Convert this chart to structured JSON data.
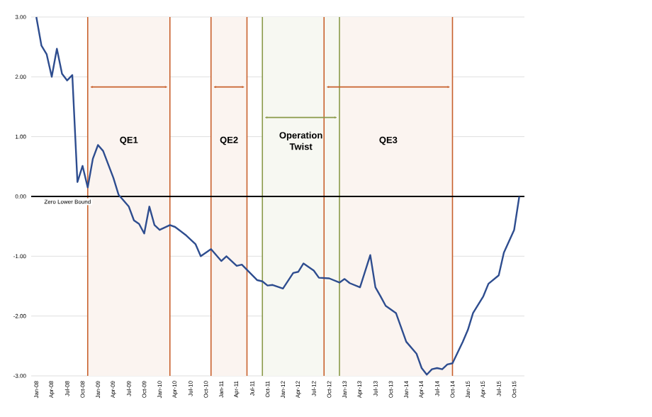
{
  "chart_data": {
    "type": "line",
    "color": "#2e4d8f",
    "x": [
      "2008-01",
      "2008-02",
      "2008-03",
      "2008-04",
      "2008-05",
      "2008-06",
      "2008-07",
      "2008-08",
      "2008-09",
      "2008-10",
      "2008-11",
      "2008-12",
      "2009-01",
      "2009-02",
      "2009-04",
      "2009-05",
      "2009-07",
      "2009-08",
      "2009-09",
      "2009-10",
      "2009-11",
      "2009-12",
      "2010-01",
      "2010-03",
      "2010-04",
      "2010-06",
      "2010-08",
      "2010-09",
      "2010-11",
      "2011-01",
      "2011-02",
      "2011-04",
      "2011-05",
      "2011-08",
      "2011-09",
      "2011-10",
      "2011-11",
      "2012-01",
      "2012-03",
      "2012-04",
      "2012-05",
      "2012-07",
      "2012-08",
      "2012-10",
      "2012-12",
      "2013-01",
      "2013-02",
      "2013-04",
      "2013-06",
      "2013-07",
      "2013-08",
      "2013-09",
      "2013-11",
      "2013-12",
      "2014-01",
      "2014-03",
      "2014-04",
      "2014-05",
      "2014-06",
      "2014-07",
      "2014-08",
      "2014-09",
      "2014-10",
      "2014-12",
      "2015-01",
      "2015-02",
      "2015-04",
      "2015-05",
      "2015-07",
      "2015-08",
      "2015-10",
      "2015-11"
    ],
    "values": [
      3.0,
      2.52,
      2.38,
      2.0,
      2.47,
      2.05,
      1.94,
      2.03,
      0.24,
      0.51,
      0.15,
      0.63,
      0.86,
      0.76,
      0.31,
      0.03,
      -0.17,
      -0.4,
      -0.46,
      -0.62,
      -0.17,
      -0.48,
      -0.56,
      -0.48,
      -0.51,
      -0.64,
      -0.8,
      -1.0,
      -0.88,
      -1.08,
      -1.0,
      -1.16,
      -1.14,
      -1.4,
      -1.42,
      -1.49,
      -1.48,
      -1.54,
      -1.28,
      -1.26,
      -1.12,
      -1.24,
      -1.36,
      -1.37,
      -1.44,
      -1.38,
      -1.45,
      -1.52,
      -0.98,
      -1.52,
      -1.67,
      -1.83,
      -1.95,
      -2.19,
      -2.43,
      -2.63,
      -2.87,
      -2.98,
      -2.89,
      -2.87,
      -2.89,
      -2.81,
      -2.79,
      -2.43,
      -2.23,
      -1.95,
      -1.67,
      -1.46,
      -1.32,
      -0.94,
      -0.56,
      0.0
    ],
    "xlim": [
      "2007-12",
      "2015-12"
    ],
    "xticks": [
      {
        "value": "2008-01",
        "label": "Jan-08"
      },
      {
        "value": "2008-04",
        "label": "Apr-08"
      },
      {
        "value": "2008-07",
        "label": "Jul-08"
      },
      {
        "value": "2008-10",
        "label": "Oct-08"
      },
      {
        "value": "2009-01",
        "label": "Jan-09"
      },
      {
        "value": "2009-04",
        "label": "Apr-09"
      },
      {
        "value": "2009-07",
        "label": "Jul-09"
      },
      {
        "value": "2009-10",
        "label": "Oct-09"
      },
      {
        "value": "2010-01",
        "label": "Jan-10"
      },
      {
        "value": "2010-04",
        "label": "Apr-10"
      },
      {
        "value": "2010-07",
        "label": "Jul-10"
      },
      {
        "value": "2010-10",
        "label": "Oct-10"
      },
      {
        "value": "2011-01",
        "label": "Jan-11"
      },
      {
        "value": "2011-04",
        "label": "Apr-11"
      },
      {
        "value": "2011-07",
        "label": "Jul-11"
      },
      {
        "value": "2011-10",
        "label": "Oct-11"
      },
      {
        "value": "2012-01",
        "label": "Jan-12"
      },
      {
        "value": "2012-04",
        "label": "Apr-12"
      },
      {
        "value": "2012-07",
        "label": "Jul-12"
      },
      {
        "value": "2012-10",
        "label": "Oct-12"
      },
      {
        "value": "2013-01",
        "label": "Jan-13"
      },
      {
        "value": "2013-04",
        "label": "Apr-13"
      },
      {
        "value": "2013-07",
        "label": "Jul-13"
      },
      {
        "value": "2013-10",
        "label": "Oct-13"
      },
      {
        "value": "2014-01",
        "label": "Jan-14"
      },
      {
        "value": "2014-04",
        "label": "Apr-14"
      },
      {
        "value": "2014-07",
        "label": "Jul-14"
      },
      {
        "value": "2014-10",
        "label": "Oct-14"
      },
      {
        "value": "2015-01",
        "label": "Jan-15"
      },
      {
        "value": "2015-04",
        "label": "Apr-15"
      },
      {
        "value": "2015-07",
        "label": "Jul-15"
      },
      {
        "value": "2015-10",
        "label": "Oct-15"
      }
    ],
    "ylim": [
      -3,
      3
    ],
    "yticks": [
      {
        "value": -3,
        "label": "-3.00"
      },
      {
        "value": -2,
        "label": "-2.00"
      },
      {
        "value": -1,
        "label": "-1.00"
      },
      {
        "value": 0,
        "label": "0.00"
      },
      {
        "value": 1,
        "label": "1.00"
      },
      {
        "value": 2,
        "label": "2.00"
      },
      {
        "value": 3,
        "label": "3.00"
      }
    ],
    "grid": "y",
    "ref_lines": [
      {
        "axis": "x",
        "value": "2008-11",
        "color": "#c8602c"
      },
      {
        "axis": "x",
        "value": "2010-03",
        "color": "#c8602c"
      },
      {
        "axis": "x",
        "value": "2010-11",
        "color": "#c8602c"
      },
      {
        "axis": "x",
        "value": "2011-06",
        "color": "#c8602c"
      },
      {
        "axis": "x",
        "value": "2011-09",
        "color": "#8a9a4a"
      },
      {
        "axis": "x",
        "value": "2012-09",
        "color": "#c8602c"
      },
      {
        "axis": "x",
        "value": "2012-12",
        "color": "#8a9a4a"
      },
      {
        "axis": "x",
        "value": "2014-10",
        "color": "#c8602c"
      },
      {
        "axis": "y",
        "value": 0,
        "label": "Zero Lower Bound",
        "color": "#000000"
      }
    ],
    "bands": [
      {
        "axis": "x",
        "from": "2008-11",
        "to": "2010-03",
        "label": "QE1",
        "color": "#fbf4f0"
      },
      {
        "axis": "x",
        "from": "2010-11",
        "to": "2011-06",
        "label": "QE2",
        "color": "#fbf4f0"
      },
      {
        "axis": "x",
        "from": "2011-09",
        "to": "2012-12",
        "label": "Operation Twist",
        "color": "#f7f8f2"
      },
      {
        "axis": "x",
        "from": "2012-09",
        "to": "2014-10",
        "label": "QE3",
        "color": "#fbf4f0"
      }
    ]
  }
}
